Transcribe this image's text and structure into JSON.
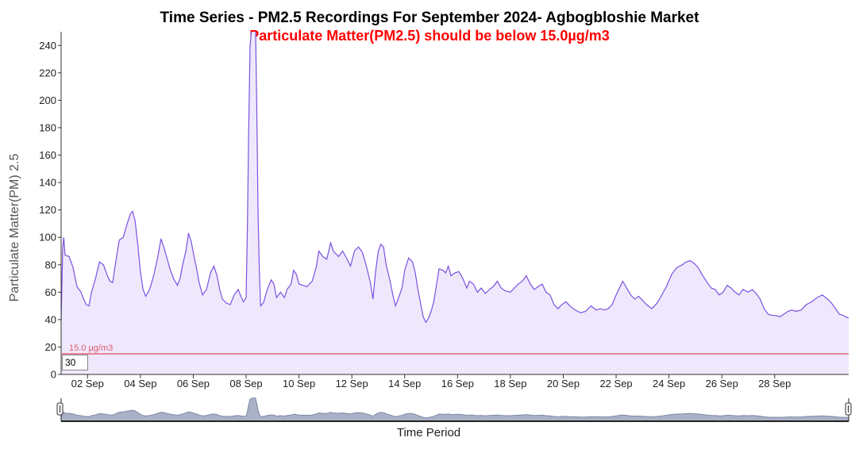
{
  "chart_data": {
    "type": "area",
    "title": "Time Series - PM2.5 Recordings For September 2024- Agbogbloshie Market",
    "subtitle": "Particulate Matter(PM2.5) should be below 15.0µg/m3",
    "xlabel": "Time Period",
    "ylabel": "Particulate Matter(PM) 2.5",
    "x_start": "2024-09-01",
    "x_end": "2024-09-30",
    "xlim": [
      1.0,
      30.8
    ],
    "ylim": [
      0,
      250
    ],
    "yticks": [
      "0",
      "20",
      "40",
      "60",
      "80",
      "100",
      "120",
      "140",
      "160",
      "180",
      "200",
      "220",
      "240"
    ],
    "xticks": [
      {
        "day": 2,
        "label": "02 Sep"
      },
      {
        "day": 4,
        "label": "04 Sep"
      },
      {
        "day": 6,
        "label": "06 Sep"
      },
      {
        "day": 8,
        "label": "08 Sep"
      },
      {
        "day": 10,
        "label": "10 Sep"
      },
      {
        "day": 12,
        "label": "12 Sep"
      },
      {
        "day": 14,
        "label": "14 Sep"
      },
      {
        "day": 16,
        "label": "16 Sep"
      },
      {
        "day": 18,
        "label": "18 Sep"
      },
      {
        "day": 20,
        "label": "20 Sep"
      },
      {
        "day": 22,
        "label": "22 Sep"
      },
      {
        "day": 24,
        "label": "24 Sep"
      },
      {
        "day": 26,
        "label": "26 Sep"
      },
      {
        "day": 28,
        "label": "28 Sep"
      }
    ],
    "grid": false,
    "legend": "none",
    "threshold": {
      "value": 15.0,
      "label": "15.0 µg/m3",
      "color": "#e05a6a"
    },
    "range_input_value": "30",
    "colors": {
      "line": "#7b52e0",
      "fill": "#efe8fd",
      "title": "#000000",
      "subtitle": "#ff0000",
      "navigator_fill": "#a9b1c6",
      "navigator_line": "#7f8aa6"
    },
    "series": [
      {
        "points": [
          [
            1.0,
            40
          ],
          [
            1.06,
            92
          ],
          [
            1.1,
            100
          ],
          [
            1.15,
            87
          ],
          [
            1.3,
            86
          ],
          [
            1.45,
            78
          ],
          [
            1.6,
            64
          ],
          [
            1.75,
            60
          ],
          [
            1.85,
            55
          ],
          [
            1.95,
            51
          ],
          [
            2.05,
            50
          ],
          [
            2.15,
            60
          ],
          [
            2.3,
            70
          ],
          [
            2.45,
            82
          ],
          [
            2.6,
            80
          ],
          [
            2.75,
            72
          ],
          [
            2.85,
            68
          ],
          [
            2.95,
            67
          ],
          [
            3.05,
            80
          ],
          [
            3.2,
            98
          ],
          [
            3.35,
            100
          ],
          [
            3.5,
            110
          ],
          [
            3.62,
            117
          ],
          [
            3.7,
            119
          ],
          [
            3.8,
            112
          ],
          [
            3.9,
            95
          ],
          [
            4.0,
            75
          ],
          [
            4.1,
            62
          ],
          [
            4.2,
            57
          ],
          [
            4.35,
            62
          ],
          [
            4.5,
            72
          ],
          [
            4.65,
            85
          ],
          [
            4.78,
            99
          ],
          [
            4.9,
            92
          ],
          [
            5.0,
            85
          ],
          [
            5.12,
            77
          ],
          [
            5.25,
            70
          ],
          [
            5.4,
            65
          ],
          [
            5.5,
            70
          ],
          [
            5.6,
            80
          ],
          [
            5.72,
            90
          ],
          [
            5.82,
            103
          ],
          [
            5.92,
            97
          ],
          [
            6.02,
            87
          ],
          [
            6.12,
            78
          ],
          [
            6.22,
            67
          ],
          [
            6.35,
            58
          ],
          [
            6.5,
            62
          ],
          [
            6.65,
            74
          ],
          [
            6.78,
            79
          ],
          [
            6.9,
            72
          ],
          [
            7.0,
            62
          ],
          [
            7.1,
            55
          ],
          [
            7.25,
            52
          ],
          [
            7.4,
            51
          ],
          [
            7.55,
            58
          ],
          [
            7.7,
            62
          ],
          [
            7.8,
            57
          ],
          [
            7.9,
            53
          ],
          [
            8.0,
            56
          ],
          [
            8.05,
            110
          ],
          [
            8.1,
            180
          ],
          [
            8.15,
            240
          ],
          [
            8.25,
            260
          ],
          [
            8.35,
            260
          ],
          [
            8.4,
            200
          ],
          [
            8.45,
            120
          ],
          [
            8.5,
            75
          ],
          [
            8.55,
            50
          ],
          [
            8.65,
            52
          ],
          [
            8.8,
            62
          ],
          [
            8.95,
            69
          ],
          [
            9.05,
            66
          ],
          [
            9.15,
            56
          ],
          [
            9.3,
            60
          ],
          [
            9.45,
            56
          ],
          [
            9.55,
            62
          ],
          [
            9.7,
            66
          ],
          [
            9.8,
            76
          ],
          [
            9.9,
            73
          ],
          [
            10.0,
            66
          ],
          [
            10.15,
            65
          ],
          [
            10.3,
            64
          ],
          [
            10.5,
            68
          ],
          [
            10.65,
            78
          ],
          [
            10.75,
            90
          ],
          [
            10.9,
            86
          ],
          [
            11.05,
            84
          ],
          [
            11.2,
            96
          ],
          [
            11.3,
            90
          ],
          [
            11.5,
            86
          ],
          [
            11.65,
            90
          ],
          [
            11.8,
            85
          ],
          [
            11.95,
            79
          ],
          [
            12.1,
            90
          ],
          [
            12.25,
            93
          ],
          [
            12.4,
            89
          ],
          [
            12.55,
            79
          ],
          [
            12.7,
            67
          ],
          [
            12.8,
            55
          ],
          [
            12.9,
            75
          ],
          [
            13.0,
            90
          ],
          [
            13.1,
            95
          ],
          [
            13.2,
            93
          ],
          [
            13.3,
            80
          ],
          [
            13.45,
            68
          ],
          [
            13.55,
            58
          ],
          [
            13.65,
            50
          ],
          [
            13.75,
            55
          ],
          [
            13.9,
            63
          ],
          [
            14.0,
            76
          ],
          [
            14.15,
            85
          ],
          [
            14.3,
            82
          ],
          [
            14.4,
            74
          ],
          [
            14.5,
            62
          ],
          [
            14.6,
            52
          ],
          [
            14.7,
            42
          ],
          [
            14.8,
            38
          ],
          [
            14.9,
            41
          ],
          [
            15.0,
            46
          ],
          [
            15.1,
            53
          ],
          [
            15.2,
            65
          ],
          [
            15.3,
            77
          ],
          [
            15.45,
            76
          ],
          [
            15.55,
            74
          ],
          [
            15.65,
            79
          ],
          [
            15.75,
            72
          ],
          [
            15.9,
            74
          ],
          [
            16.05,
            75
          ],
          [
            16.2,
            70
          ],
          [
            16.35,
            63
          ],
          [
            16.45,
            68
          ],
          [
            16.6,
            66
          ],
          [
            16.75,
            60
          ],
          [
            16.9,
            63
          ],
          [
            17.05,
            59
          ],
          [
            17.2,
            62
          ],
          [
            17.35,
            64
          ],
          [
            17.5,
            68
          ],
          [
            17.65,
            63
          ],
          [
            17.8,
            61
          ],
          [
            18.0,
            60
          ],
          [
            18.15,
            63
          ],
          [
            18.3,
            66
          ],
          [
            18.45,
            68
          ],
          [
            18.6,
            72
          ],
          [
            18.75,
            66
          ],
          [
            18.9,
            62
          ],
          [
            19.05,
            64
          ],
          [
            19.2,
            66
          ],
          [
            19.35,
            60
          ],
          [
            19.5,
            58
          ],
          [
            19.65,
            51
          ],
          [
            19.8,
            48
          ],
          [
            19.95,
            51
          ],
          [
            20.1,
            53
          ],
          [
            20.25,
            50
          ],
          [
            20.45,
            47
          ],
          [
            20.65,
            45
          ],
          [
            20.85,
            46
          ],
          [
            21.05,
            50
          ],
          [
            21.25,
            47
          ],
          [
            21.4,
            48
          ],
          [
            21.55,
            47
          ],
          [
            21.7,
            48
          ],
          [
            21.85,
            51
          ],
          [
            22.0,
            58
          ],
          [
            22.15,
            64
          ],
          [
            22.25,
            68
          ],
          [
            22.4,
            63
          ],
          [
            22.55,
            58
          ],
          [
            22.7,
            55
          ],
          [
            22.85,
            57
          ],
          [
            23.0,
            54
          ],
          [
            23.15,
            51
          ],
          [
            23.35,
            48
          ],
          [
            23.55,
            52
          ],
          [
            23.7,
            57
          ],
          [
            23.9,
            64
          ],
          [
            24.1,
            73
          ],
          [
            24.3,
            78
          ],
          [
            24.5,
            80
          ],
          [
            24.65,
            82
          ],
          [
            24.8,
            83
          ],
          [
            24.95,
            81
          ],
          [
            25.1,
            78
          ],
          [
            25.25,
            73
          ],
          [
            25.45,
            67
          ],
          [
            25.6,
            63
          ],
          [
            25.75,
            62
          ],
          [
            25.9,
            58
          ],
          [
            26.05,
            60
          ],
          [
            26.2,
            65
          ],
          [
            26.35,
            63
          ],
          [
            26.5,
            60
          ],
          [
            26.65,
            58
          ],
          [
            26.8,
            62
          ],
          [
            27.0,
            60
          ],
          [
            27.15,
            62
          ],
          [
            27.3,
            59
          ],
          [
            27.45,
            55
          ],
          [
            27.6,
            48
          ],
          [
            27.75,
            44
          ],
          [
            27.9,
            43
          ],
          [
            28.05,
            43
          ],
          [
            28.2,
            42
          ],
          [
            28.35,
            44
          ],
          [
            28.5,
            46
          ],
          [
            28.65,
            47
          ],
          [
            28.8,
            46
          ],
          [
            29.0,
            47
          ],
          [
            29.2,
            51
          ],
          [
            29.4,
            53
          ],
          [
            29.6,
            56
          ],
          [
            29.8,
            58
          ],
          [
            30.0,
            55
          ],
          [
            30.15,
            52
          ],
          [
            30.3,
            48
          ],
          [
            30.45,
            44
          ],
          [
            30.6,
            43
          ],
          [
            30.8,
            41
          ]
        ]
      }
    ]
  }
}
